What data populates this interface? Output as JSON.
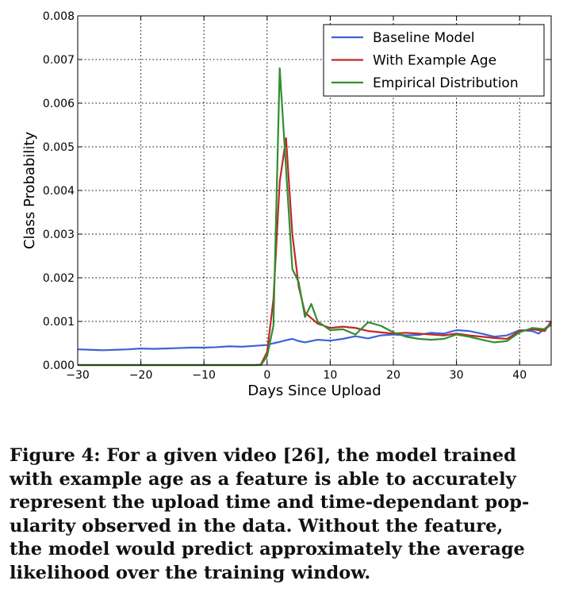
{
  "chart_data": {
    "type": "line",
    "title": "",
    "xlabel": "Days Since Upload",
    "ylabel": "Class Probability",
    "xlim": [
      -30,
      45
    ],
    "ylim": [
      0,
      0.008
    ],
    "xticks": [
      -30,
      -20,
      -10,
      0,
      10,
      20,
      30,
      40
    ],
    "xtick_labels": [
      "−30",
      "−20",
      "−10",
      "0",
      "10",
      "20",
      "30",
      "40"
    ],
    "yticks": [
      0,
      0.001,
      0.002,
      0.003,
      0.004,
      0.005,
      0.006,
      0.007,
      0.008
    ],
    "ytick_labels": [
      "0.000",
      "0.001",
      "0.002",
      "0.003",
      "0.004",
      "0.005",
      "0.006",
      "0.007",
      "0.008"
    ],
    "grid": true,
    "legend_position": "top-right",
    "series": [
      {
        "name": "Baseline Model",
        "color": "#3f62d6",
        "points": [
          [
            -30,
            0.00036
          ],
          [
            -28,
            0.00035
          ],
          [
            -26,
            0.00034
          ],
          [
            -24,
            0.00035
          ],
          [
            -22,
            0.00036
          ],
          [
            -20,
            0.00038
          ],
          [
            -18,
            0.00037
          ],
          [
            -16,
            0.00038
          ],
          [
            -14,
            0.00039
          ],
          [
            -12,
            0.0004
          ],
          [
            -10,
            0.0004
          ],
          [
            -8,
            0.00041
          ],
          [
            -6,
            0.00043
          ],
          [
            -4,
            0.00042
          ],
          [
            -2,
            0.00044
          ],
          [
            0,
            0.00046
          ],
          [
            1,
            0.0005
          ],
          [
            2,
            0.00053
          ],
          [
            3,
            0.00057
          ],
          [
            4,
            0.0006
          ],
          [
            5,
            0.00055
          ],
          [
            6,
            0.00052
          ],
          [
            8,
            0.00058
          ],
          [
            10,
            0.00056
          ],
          [
            12,
            0.0006
          ],
          [
            14,
            0.00066
          ],
          [
            16,
            0.00061
          ],
          [
            18,
            0.00068
          ],
          [
            20,
            0.0007
          ],
          [
            22,
            0.00068
          ],
          [
            24,
            0.00069
          ],
          [
            26,
            0.00074
          ],
          [
            28,
            0.00072
          ],
          [
            30,
            0.0008
          ],
          [
            32,
            0.00078
          ],
          [
            34,
            0.00072
          ],
          [
            36,
            0.00065
          ],
          [
            38,
            0.00068
          ],
          [
            40,
            0.0008
          ],
          [
            42,
            0.00078
          ],
          [
            43,
            0.00072
          ],
          [
            45,
            0.00095
          ]
        ]
      },
      {
        "name": "With Example Age",
        "color": "#c0282a",
        "points": [
          [
            -30,
            0
          ],
          [
            -2,
            0
          ],
          [
            -1,
            1e-05
          ],
          [
            0,
            0.0003
          ],
          [
            1,
            0.0015
          ],
          [
            2,
            0.0042
          ],
          [
            3,
            0.0052
          ],
          [
            4,
            0.003
          ],
          [
            5,
            0.0018
          ],
          [
            6,
            0.0012
          ],
          [
            8,
            0.00095
          ],
          [
            10,
            0.00085
          ],
          [
            12,
            0.00088
          ],
          [
            14,
            0.00085
          ],
          [
            16,
            0.00078
          ],
          [
            18,
            0.00075
          ],
          [
            20,
            0.00072
          ],
          [
            22,
            0.00074
          ],
          [
            24,
            0.00072
          ],
          [
            26,
            0.0007
          ],
          [
            28,
            0.00068
          ],
          [
            30,
            0.00072
          ],
          [
            32,
            0.00068
          ],
          [
            34,
            0.00065
          ],
          [
            36,
            0.00062
          ],
          [
            38,
            0.0006
          ],
          [
            40,
            0.00078
          ],
          [
            42,
            0.00082
          ],
          [
            44,
            0.00078
          ],
          [
            45,
            0.001
          ]
        ]
      },
      {
        "name": "Empirical Distribution",
        "color": "#2f8f2f",
        "points": [
          [
            -30,
            0
          ],
          [
            -1,
            0
          ],
          [
            0,
            0.0002
          ],
          [
            1,
            0.0009
          ],
          [
            2,
            0.0068
          ],
          [
            3,
            0.0045
          ],
          [
            4,
            0.0022
          ],
          [
            5,
            0.0019
          ],
          [
            6,
            0.0011
          ],
          [
            7,
            0.0014
          ],
          [
            8,
            0.001
          ],
          [
            10,
            0.0008
          ],
          [
            12,
            0.00082
          ],
          [
            14,
            0.0007
          ],
          [
            16,
            0.00098
          ],
          [
            18,
            0.0009
          ],
          [
            20,
            0.00075
          ],
          [
            22,
            0.00065
          ],
          [
            24,
            0.0006
          ],
          [
            26,
            0.00058
          ],
          [
            28,
            0.0006
          ],
          [
            30,
            0.0007
          ],
          [
            32,
            0.00065
          ],
          [
            34,
            0.00058
          ],
          [
            36,
            0.00052
          ],
          [
            38,
            0.00055
          ],
          [
            40,
            0.00075
          ],
          [
            42,
            0.00085
          ],
          [
            44,
            0.00082
          ],
          [
            45,
            0.00092
          ]
        ]
      }
    ]
  },
  "caption": {
    "lines": [
      "Figure 4: For a given video [26], the model trained",
      "with example age as a feature is able to accurately",
      "represent the upload time and time-dependant pop-",
      "ularity observed in the data.  Without the feature,",
      "the model would predict approximately the average",
      "likelihood over the training window."
    ]
  }
}
